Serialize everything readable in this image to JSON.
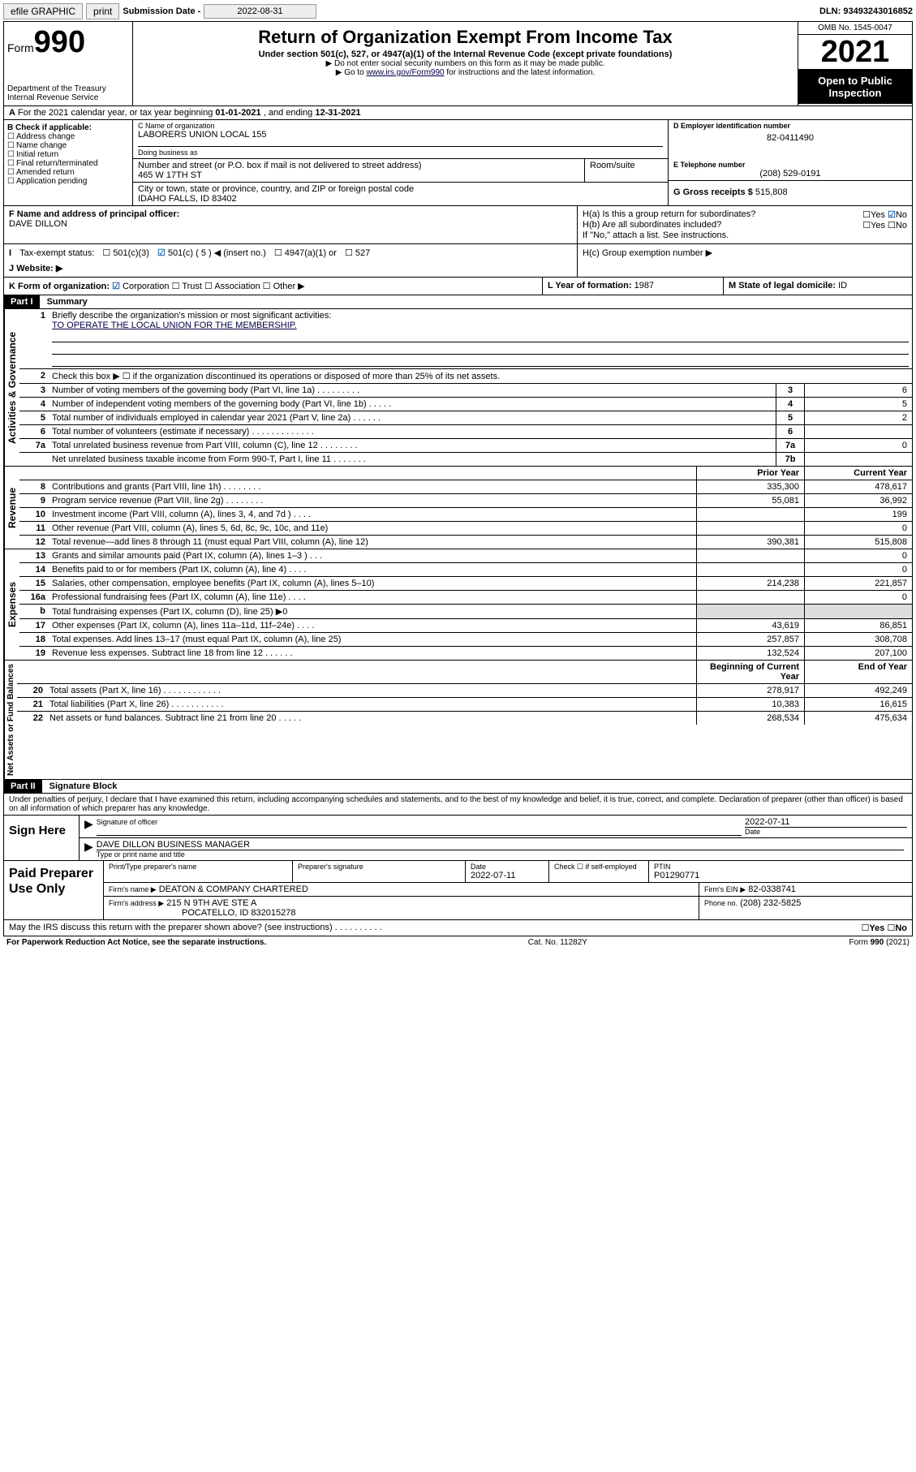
{
  "topbar": {
    "efile": "efile GRAPHIC",
    "print": "print",
    "sub_label": "Submission Date -",
    "sub_date": "2022-08-31",
    "dln_label": "DLN:",
    "dln": "93493243016852"
  },
  "header": {
    "form_label": "Form",
    "form_num": "990",
    "dept": "Department of the Treasury",
    "irs": "Internal Revenue Service",
    "title": "Return of Organization Exempt From Income Tax",
    "sub1": "Under section 501(c), 527, or 4947(a)(1) of the Internal Revenue Code (except private foundations)",
    "sub2": "▶ Do not enter social security numbers on this form as it may be made public.",
    "sub3_pre": "▶ Go to ",
    "sub3_link": "www.irs.gov/Form990",
    "sub3_post": " for instructions and the latest information.",
    "omb": "OMB No. 1545-0047",
    "year": "2021",
    "open": "Open to Public Inspection"
  },
  "rowA": {
    "text_pre": "For the 2021 calendar year, or tax year beginning ",
    "begin": "01-01-2021",
    "mid": " , and ending ",
    "end": "12-31-2021"
  },
  "B": {
    "label": "B Check if applicable:",
    "items": [
      "Address change",
      "Name change",
      "Initial return",
      "Final return/terminated",
      "Amended return",
      "Application pending"
    ]
  },
  "C": {
    "name_label": "C Name of organization",
    "name": "LABORERS UNION LOCAL 155",
    "dba_label": "Doing business as",
    "addr_label": "Number and street (or P.O. box if mail is not delivered to street address)",
    "room_label": "Room/suite",
    "addr": "465 W 17TH ST",
    "city_label": "City or town, state or province, country, and ZIP or foreign postal code",
    "city": "IDAHO FALLS, ID  83402"
  },
  "D": {
    "ein_label": "D Employer identification number",
    "ein": "82-0411490",
    "tel_label": "E Telephone number",
    "tel": "(208) 529-0191",
    "gross_label": "G Gross receipts $",
    "gross": "515,808"
  },
  "F": {
    "label": "F  Name and address of principal officer:",
    "name": "DAVE DILLON"
  },
  "H": {
    "a": "H(a)  Is this a group return for subordinates?",
    "b": "H(b)  Are all subordinates included?",
    "b_note": "If \"No,\" attach a list. See instructions.",
    "c": "H(c)  Group exemption number ▶",
    "yes": "Yes",
    "no": "No"
  },
  "I": {
    "label": "Tax-exempt status:",
    "opts": [
      "501(c)(3)",
      "501(c) ( 5 ) ◀ (insert no.)",
      "4947(a)(1) or",
      "527"
    ]
  },
  "J": {
    "label": "Website: ▶"
  },
  "K": {
    "label": "K Form of organization:",
    "opts": [
      "Corporation",
      "Trust",
      "Association",
      "Other ▶"
    ]
  },
  "L": {
    "label": "L Year of formation:",
    "val": "1987"
  },
  "M": {
    "label": "M State of legal domicile:",
    "val": "ID"
  },
  "part1": {
    "hdr": "Part I",
    "title": "Summary",
    "q1_label": "Briefly describe the organization's mission or most significant activities:",
    "q1_text": "TO OPERATE THE LOCAL UNION FOR THE MEMBERSHIP.",
    "q2": "Check this box ▶ ☐  if the organization discontinued its operations or disposed of more than 25% of its net assets.",
    "tab_gov": "Activities & Governance",
    "tab_rev": "Revenue",
    "tab_exp": "Expenses",
    "tab_net": "Net Assets or Fund Balances",
    "hdr_prior": "Prior Year",
    "hdr_curr": "Current Year",
    "hdr_boy": "Beginning of Current Year",
    "hdr_eoy": "End of Year",
    "rows_gov": [
      {
        "n": "3",
        "d": "Number of voting members of the governing body (Part VI, line 1a)  .   .   .   .   .   .   .   .   .",
        "box": "3",
        "v": "6"
      },
      {
        "n": "4",
        "d": "Number of independent voting members of the governing body (Part VI, line 1b)   .   .   .   .   .",
        "box": "4",
        "v": "5"
      },
      {
        "n": "5",
        "d": "Total number of individuals employed in calendar year 2021 (Part V, line 2a)  .   .   .   .   .   .",
        "box": "5",
        "v": "2"
      },
      {
        "n": "6",
        "d": "Total number of volunteers (estimate if necessary)   .   .   .   .   .   .   .   .   .   .   .   .   .",
        "box": "6",
        "v": ""
      },
      {
        "n": "7a",
        "d": "Total unrelated business revenue from Part VIII, column (C), line 12   .   .   .   .   .   .   .   .",
        "box": "7a",
        "v": "0"
      },
      {
        "n": "",
        "d": "Net unrelated business taxable income from Form 990-T, Part I, line 11   .   .   .   .   .   .   .",
        "box": "7b",
        "v": ""
      }
    ],
    "rows_rev": [
      {
        "n": "8",
        "d": "Contributions and grants (Part VIII, line 1h)   .   .   .   .   .   .   .   .",
        "p": "335,300",
        "c": "478,617"
      },
      {
        "n": "9",
        "d": "Program service revenue (Part VIII, line 2g)   .   .   .   .   .   .   .   .",
        "p": "55,081",
        "c": "36,992"
      },
      {
        "n": "10",
        "d": "Investment income (Part VIII, column (A), lines 3, 4, and 7d )   .   .   .   .",
        "p": "",
        "c": "199"
      },
      {
        "n": "11",
        "d": "Other revenue (Part VIII, column (A), lines 5, 6d, 8c, 9c, 10c, and 11e)",
        "p": "",
        "c": "0"
      },
      {
        "n": "12",
        "d": "Total revenue—add lines 8 through 11 (must equal Part VIII, column (A), line 12)",
        "p": "390,381",
        "c": "515,808"
      }
    ],
    "rows_exp": [
      {
        "n": "13",
        "d": "Grants and similar amounts paid (Part IX, column (A), lines 1–3 )   .   .   .",
        "p": "",
        "c": "0"
      },
      {
        "n": "14",
        "d": "Benefits paid to or for members (Part IX, column (A), line 4)   .   .   .   .",
        "p": "",
        "c": "0"
      },
      {
        "n": "15",
        "d": "Salaries, other compensation, employee benefits (Part IX, column (A), lines 5–10)",
        "p": "214,238",
        "c": "221,857"
      },
      {
        "n": "16a",
        "d": "Professional fundraising fees (Part IX, column (A), line 11e)   .   .   .   .",
        "p": "",
        "c": "0"
      },
      {
        "n": "b",
        "d": "Total fundraising expenses (Part IX, column (D), line 25) ▶0",
        "p": "SHADE",
        "c": "SHADE"
      },
      {
        "n": "17",
        "d": "Other expenses (Part IX, column (A), lines 11a–11d, 11f–24e)   .   .   .   .",
        "p": "43,619",
        "c": "86,851"
      },
      {
        "n": "18",
        "d": "Total expenses. Add lines 13–17 (must equal Part IX, column (A), line 25)",
        "p": "257,857",
        "c": "308,708"
      },
      {
        "n": "19",
        "d": "Revenue less expenses. Subtract line 18 from line 12   .   .   .   .   .   .",
        "p": "132,524",
        "c": "207,100"
      }
    ],
    "rows_net": [
      {
        "n": "20",
        "d": "Total assets (Part X, line 16)   .   .   .   .   .   .   .   .   .   .   .   .",
        "p": "278,917",
        "c": "492,249"
      },
      {
        "n": "21",
        "d": "Total liabilities (Part X, line 26)   .   .   .   .   .   .   .   .   .   .   .",
        "p": "10,383",
        "c": "16,615"
      },
      {
        "n": "22",
        "d": "Net assets or fund balances. Subtract line 21 from line 20   .   .   .   .   .",
        "p": "268,534",
        "c": "475,634"
      }
    ]
  },
  "part2": {
    "hdr": "Part II",
    "title": "Signature Block",
    "decl": "Under penalties of perjury, I declare that I have examined this return, including accompanying schedules and statements, and to the best of my knowledge and belief, it is true, correct, and complete. Declaration of preparer (other than officer) is based on all information of which preparer has any knowledge."
  },
  "sign": {
    "here": "Sign Here",
    "sig_label": "Signature of officer",
    "date_label": "Date",
    "date": "2022-07-11",
    "name": "DAVE DILLON  BUSINESS MANAGER",
    "name_label": "Type or print name and title"
  },
  "paid": {
    "label": "Paid Preparer Use Only",
    "h1": "Print/Type preparer's name",
    "h2": "Preparer's signature",
    "h3": "Date",
    "date": "2022-07-11",
    "h4": "Check ☐ if self-employed",
    "h5": "PTIN",
    "ptin": "P01290771",
    "firm_name_l": "Firm's name    ▶",
    "firm_name": "DEATON & COMPANY CHARTERED",
    "firm_ein_l": "Firm's EIN ▶",
    "firm_ein": "82-0338741",
    "firm_addr_l": "Firm's address ▶",
    "firm_addr1": "215 N 9TH AVE STE A",
    "firm_addr2": "POCATELLO, ID  832015278",
    "phone_l": "Phone no.",
    "phone": "(208) 232-5825"
  },
  "may": {
    "q": "May the IRS discuss this return with the preparer shown above? (see instructions)   .   .   .   .   .   .   .   .   .   .",
    "yes": "Yes",
    "no": "No"
  },
  "footer": {
    "left": "For Paperwork Reduction Act Notice, see the separate instructions.",
    "mid": "Cat. No. 11282Y",
    "right": "Form 990 (2021)"
  }
}
